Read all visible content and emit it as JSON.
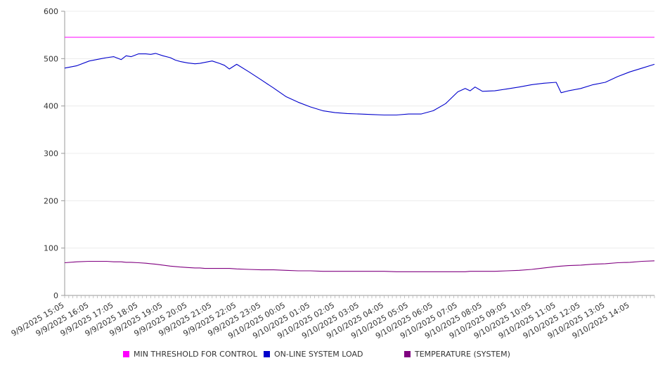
{
  "chart_data": {
    "type": "line",
    "title": "",
    "xlabel": "",
    "ylabel": "",
    "ylim": [
      0,
      600
    ],
    "yticks": [
      0,
      100,
      200,
      300,
      400,
      500,
      600
    ],
    "grid": true,
    "legend_position": "bottom",
    "x_tick_labels": [
      "9/9/2025 15:05",
      "9/9/2025 16:05",
      "9/9/2025 17:05",
      "9/9/2025 18:05",
      "9/9/2025 19:05",
      "9/9/2025 20:05",
      "9/9/2025 21:05",
      "9/9/2025 22:05",
      "9/9/2025 23:05",
      "9/10/2025 00:05",
      "9/10/2025 01:05",
      "9/10/2025 02:05",
      "9/10/2025 03:05",
      "9/10/2025 04:05",
      "9/10/2025 05:05",
      "9/10/2025 06:05",
      "9/10/2025 07:05",
      "9/10/2025 08:05",
      "9/10/2025 09:05",
      "9/10/2025 10:05",
      "9/10/2025 11:05",
      "9/10/2025 12:05",
      "9/10/2025 13:05",
      "9/10/2025 14:05"
    ],
    "x_hours": [
      0,
      0.5,
      1,
      1.3,
      1.5,
      1.7,
      2,
      2.3,
      2.5,
      2.7,
      3,
      3.3,
      3.5,
      3.7,
      4,
      4.3,
      4.5,
      4.7,
      5,
      5.3,
      5.5,
      5.7,
      6,
      6.3,
      6.5,
      6.7,
      7,
      7.5,
      8,
      8.5,
      9,
      9.5,
      10,
      10.5,
      11,
      11.5,
      12,
      12.5,
      13,
      13.5,
      14,
      14.5,
      15,
      15.5,
      16,
      16.3,
      16.5,
      16.7,
      17,
      17.5,
      18,
      18.5,
      19,
      19.5,
      20,
      20.2,
      20.5,
      21,
      21.5,
      22,
      22.5,
      23,
      23.5,
      24
    ],
    "series": [
      {
        "name": "MIN THRESHOLD FOR CONTROL",
        "color": "#ff00ff",
        "values": [
          545,
          545,
          545,
          545,
          545,
          545,
          545,
          545,
          545,
          545,
          545,
          545,
          545,
          545,
          545,
          545,
          545,
          545,
          545,
          545,
          545,
          545,
          545,
          545,
          545,
          545,
          545,
          545,
          545,
          545,
          545,
          545,
          545,
          545,
          545,
          545,
          545,
          545,
          545,
          545,
          545,
          545,
          545,
          545,
          545,
          545,
          545,
          545,
          545,
          545,
          545,
          545,
          545,
          545,
          545,
          545,
          545,
          545,
          545,
          545,
          545,
          545,
          545,
          545
        ]
      },
      {
        "name": "ON-LINE SYSTEM LOAD",
        "color": "#0000cc",
        "values": [
          480,
          485,
          495,
          498,
          500,
          502,
          504,
          498,
          506,
          504,
          510,
          510,
          509,
          511,
          506,
          502,
          497,
          494,
          491,
          489,
          490,
          492,
          495,
          490,
          486,
          478,
          488,
          472,
          455,
          438,
          420,
          408,
          398,
          390,
          386,
          384,
          383,
          382,
          381,
          381,
          383,
          383,
          390,
          405,
          430,
          437,
          432,
          440,
          431,
          432,
          436,
          440,
          445,
          448,
          450,
          428,
          432,
          437,
          445,
          450,
          462,
          472,
          480,
          488
        ]
      },
      {
        "name": "TEMPERATURE (SYSTEM)",
        "color": "#800080",
        "values": [
          69,
          71,
          72,
          72,
          72,
          72,
          71,
          71,
          70,
          70,
          69,
          68,
          67,
          66,
          64,
          62,
          61,
          60,
          59,
          58,
          58,
          57,
          57,
          57,
          57,
          57,
          56,
          55,
          54,
          54,
          53,
          52,
          52,
          51,
          51,
          51,
          51,
          51,
          51,
          50,
          50,
          50,
          50,
          50,
          50,
          50,
          51,
          51,
          51,
          51,
          52,
          53,
          55,
          58,
          61,
          62,
          63,
          64,
          66,
          67,
          69,
          70,
          72,
          73
        ]
      }
    ]
  }
}
